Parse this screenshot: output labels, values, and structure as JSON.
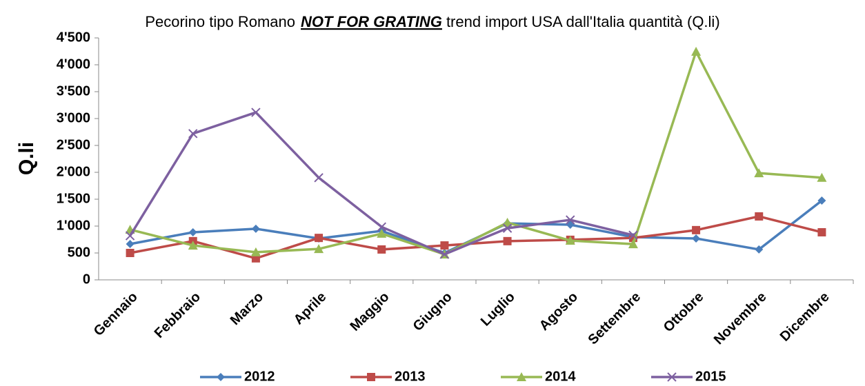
{
  "chart_data": {
    "type": "line",
    "title": [
      "Pecorino tipo Romano",
      "NOT FOR GRATING",
      "trend import USA dall'Italia quantità (Q.li)"
    ],
    "y_label": "Q.li",
    "categories": [
      "Gennaio",
      "Febbraio",
      "Marzo",
      "Aprile",
      "Maggio",
      "Giugno",
      "Luglio",
      "Agosto",
      "Settembre",
      "Ottobre",
      "Novembre",
      "Dicembre"
    ],
    "series": [
      {
        "name": "2012",
        "color": "#4a7ebb",
        "marker": "diamond",
        "values": [
          667,
          885,
          950,
          770,
          910,
          500,
          1050,
          1025,
          795,
          770,
          565,
          1475
        ]
      },
      {
        "name": "2013",
        "color": "#be4b48",
        "marker": "square",
        "values": [
          500,
          720,
          400,
          780,
          565,
          640,
          720,
          745,
          780,
          925,
          1180,
          885
        ]
      },
      {
        "name": "2014",
        "color": "#98b954",
        "marker": "triangle",
        "values": [
          935,
          640,
          515,
          575,
          860,
          475,
          1065,
          730,
          665,
          4245,
          1985,
          1900
        ]
      },
      {
        "name": "2015",
        "color": "#7d60a0",
        "marker": "x",
        "values": [
          820,
          2720,
          3115,
          1900,
          985,
          475,
          960,
          1115,
          830,
          null,
          null,
          null
        ]
      }
    ],
    "ylim": [
      0,
      4500
    ],
    "yticks": [
      0,
      500,
      {
        "value": 1000,
        "label": "1'000"
      },
      {
        "value": 1500,
        "label": "1'500"
      },
      {
        "value": 2000,
        "label": "2'000"
      },
      {
        "value": 2500,
        "label": "2'500"
      },
      {
        "value": 3000,
        "label": "3'000"
      },
      {
        "value": 3500,
        "label": "3'500"
      },
      {
        "value": 4000,
        "label": "4'000"
      },
      {
        "value": 4500,
        "label": "4'500"
      }
    ],
    "legend": "bottom"
  }
}
